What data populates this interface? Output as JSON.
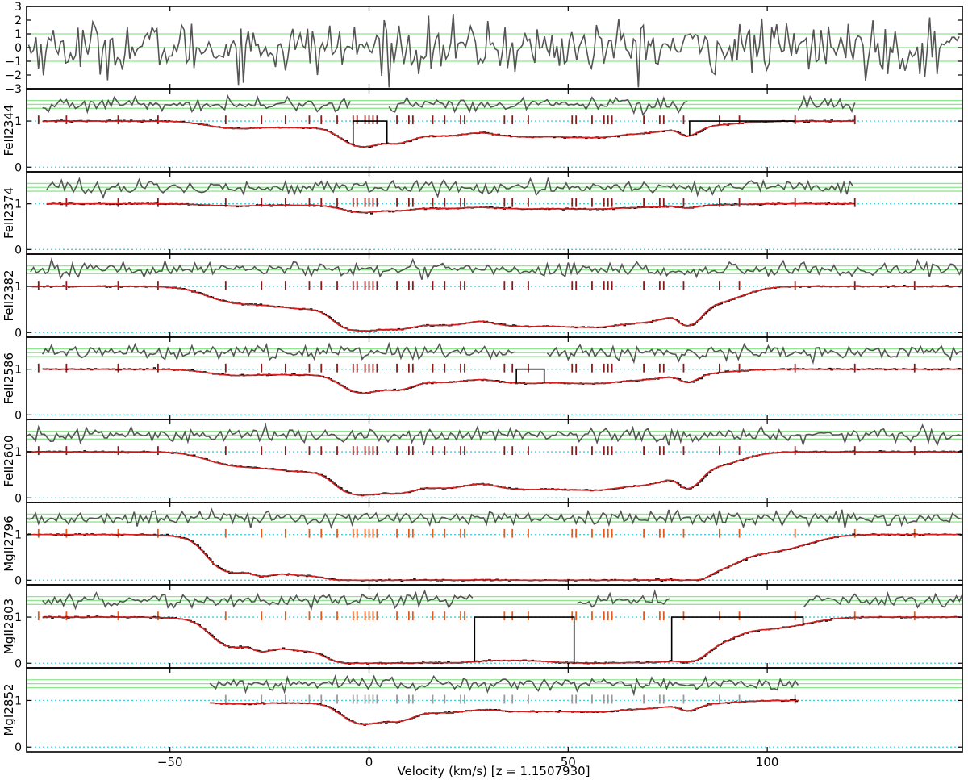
{
  "chart_data": {
    "type": "line",
    "xlabel": "Velocity (km/s) [z = 1.1507930]",
    "xlim": [
      -86,
      149
    ],
    "xticks": [
      -50,
      0,
      50,
      100
    ],
    "xtick_labels": [
      "−50",
      "0",
      "50",
      "100"
    ],
    "residual_panel": {
      "ylim": [
        -3,
        3
      ],
      "yticks": [
        3,
        2,
        1,
        0,
        -1,
        -2,
        -3
      ],
      "ytick_labels": [
        "3",
        "2",
        "1",
        "0",
        "−1",
        "−2",
        "−3"
      ],
      "reference_lines": [
        1,
        0,
        -1
      ]
    },
    "component_velocities": [
      -83,
      -76,
      -63,
      -53,
      -36,
      -27,
      -21,
      -15,
      -12,
      -8,
      -4,
      -3,
      -1,
      0,
      1,
      2,
      7,
      10,
      11,
      16,
      19,
      23,
      24,
      34,
      36,
      40,
      51,
      52,
      56,
      59,
      60,
      61,
      69,
      73,
      74,
      79,
      88,
      93,
      107,
      122,
      137
    ],
    "transitions": [
      {
        "label": "FeII2344",
        "ylim": [
          -0.1,
          1.7
        ],
        "yticks": [
          0,
          1
        ],
        "vrange": [
          -82,
          122
        ],
        "tick_color": "#8b1a1a",
        "mask_regions": [
          [
            -4,
            4.5
          ],
          [
            80.5,
            107
          ]
        ],
        "residual_gaps": [
          [
            -4,
            4.5
          ],
          [
            80.5,
            107
          ]
        ],
        "continuum_feature": [
          -35,
          0.12,
          6
        ],
        "absorption": [
          [
            -20,
            20,
            0.12,
            0.4
          ],
          [
            -12,
            18,
            0.04,
            0.4
          ],
          [
            -4,
            7,
            0.3,
            0.1
          ],
          [
            0,
            8,
            0.5,
            0.18
          ],
          [
            8,
            6,
            0.4,
            0.12
          ],
          [
            16,
            8,
            0.25,
            0.15
          ],
          [
            24,
            10,
            0.25,
            0.15
          ],
          [
            35,
            8,
            0.25,
            0.4
          ],
          [
            43,
            10,
            0.25,
            0.4
          ],
          [
            52,
            10,
            0.22,
            0.3
          ],
          [
            60,
            10,
            0.25,
            0.35
          ],
          [
            72,
            11,
            0.2,
            0.35
          ],
          [
            80,
            3.5,
            0.25,
            0.4
          ],
          [
            88,
            8,
            0.06,
            0.4
          ]
        ]
      },
      {
        "label": "FeII2374",
        "ylim": [
          -0.1,
          1.7
        ],
        "yticks": [
          0,
          1
        ],
        "vrange": [
          -81,
          122
        ],
        "tick_color": "#8b1a1a",
        "mask_regions": [],
        "residual_gaps": [],
        "continuum_feature": [
          -35,
          0.04,
          6
        ],
        "absorption": [
          [
            -20,
            20,
            0.02,
            0.4
          ],
          [
            -12,
            18,
            0.015,
            0.4
          ],
          [
            -4,
            7,
            0.08,
            0.1
          ],
          [
            0,
            8,
            0.13,
            0.18
          ],
          [
            8,
            6,
            0.1,
            0.12
          ],
          [
            16,
            8,
            0.07,
            0.15
          ],
          [
            24,
            10,
            0.07,
            0.15
          ],
          [
            35,
            8,
            0.07,
            0.4
          ],
          [
            43,
            10,
            0.07,
            0.4
          ],
          [
            52,
            10,
            0.06,
            0.3
          ],
          [
            60,
            10,
            0.07,
            0.35
          ],
          [
            72,
            11,
            0.05,
            0.35
          ],
          [
            80,
            3.5,
            0.06,
            0.4
          ],
          [
            88,
            8,
            0.015,
            0.4
          ]
        ]
      },
      {
        "label": "FeII2382",
        "ylim": [
          -0.1,
          1.7
        ],
        "yticks": [
          0,
          1
        ],
        "vrange": [
          -85,
          149
        ],
        "tick_color": "#8b1a1a",
        "mask_regions": [],
        "residual_gaps": [],
        "continuum_feature": [
          -35,
          0.25,
          6
        ],
        "absorption": [
          [
            -20,
            20,
            0.4,
            0.4
          ],
          [
            -12,
            18,
            0.3,
            0.4
          ],
          [
            -4,
            7,
            1.2,
            0.1
          ],
          [
            0,
            8,
            2.0,
            0.18
          ],
          [
            8,
            6,
            1.6,
            0.12
          ],
          [
            16,
            8,
            1.2,
            0.15
          ],
          [
            24,
            10,
            1.2,
            0.15
          ],
          [
            35,
            8,
            1.2,
            0.4
          ],
          [
            43,
            10,
            1.2,
            0.4
          ],
          [
            52,
            10,
            1.1,
            0.3
          ],
          [
            60,
            10,
            1.2,
            0.35
          ],
          [
            72,
            11,
            1.0,
            0.35
          ],
          [
            80,
            3.5,
            1.2,
            0.4
          ],
          [
            88,
            8,
            0.3,
            0.4
          ]
        ]
      },
      {
        "label": "FeII2586",
        "ylim": [
          -0.1,
          1.7
        ],
        "yticks": [
          0,
          1
        ],
        "vrange": [
          -82,
          149
        ],
        "tick_color": "#8b1a1a",
        "mask_regions": [
          [
            37,
            44
          ]
        ],
        "residual_gaps": [
          [
            37,
            44
          ]
        ],
        "continuum_feature": [
          -35,
          0.1,
          6
        ],
        "absorption": [
          [
            -20,
            20,
            0.1,
            0.4
          ],
          [
            -12,
            18,
            0.04,
            0.4
          ],
          [
            -4,
            7,
            0.28,
            0.1
          ],
          [
            0,
            8,
            0.45,
            0.18
          ],
          [
            8,
            6,
            0.38,
            0.12
          ],
          [
            16,
            8,
            0.22,
            0.15
          ],
          [
            24,
            10,
            0.22,
            0.15
          ],
          [
            35,
            8,
            0.22,
            0.4
          ],
          [
            43,
            10,
            0.22,
            0.4
          ],
          [
            52,
            10,
            0.18,
            0.3
          ],
          [
            60,
            10,
            0.22,
            0.35
          ],
          [
            72,
            11,
            0.17,
            0.35
          ],
          [
            80,
            3.5,
            0.22,
            0.4
          ],
          [
            88,
            8,
            0.05,
            0.4
          ]
        ]
      },
      {
        "label": "FeII2600",
        "ylim": [
          -0.1,
          1.7
        ],
        "yticks": [
          0,
          1
        ],
        "vrange": [
          -86,
          149
        ],
        "tick_color": "#8b1a1a",
        "mask_regions": [],
        "residual_gaps": [],
        "continuum_feature": [
          -35,
          0.2,
          6
        ],
        "absorption": [
          [
            -20,
            20,
            0.35,
            0.4
          ],
          [
            -12,
            18,
            0.25,
            0.4
          ],
          [
            -4,
            7,
            1.0,
            0.1
          ],
          [
            0,
            8,
            1.7,
            0.18
          ],
          [
            8,
            6,
            1.4,
            0.12
          ],
          [
            16,
            8,
            1.0,
            0.15
          ],
          [
            24,
            10,
            1.0,
            0.15
          ],
          [
            35,
            8,
            1.0,
            0.4
          ],
          [
            43,
            10,
            1.0,
            0.4
          ],
          [
            52,
            10,
            0.9,
            0.3
          ],
          [
            60,
            10,
            1.0,
            0.35
          ],
          [
            72,
            11,
            0.85,
            0.35
          ],
          [
            80,
            3.5,
            1.0,
            0.4
          ],
          [
            88,
            8,
            0.25,
            0.4
          ]
        ]
      },
      {
        "label": "MgII2796",
        "ylim": [
          -0.1,
          1.7
        ],
        "yticks": [
          0,
          1
        ],
        "vrange": [
          -86,
          149
        ],
        "tick_color": "#e85a1a",
        "mask_regions": [],
        "residual_gaps": [],
        "continuum_feature": [
          -35,
          1.2,
          4
        ],
        "absorption": [
          [
            -27,
            4,
            0.9,
            0.1
          ],
          [
            -20,
            20,
            1.2,
            0.4
          ],
          [
            -12,
            18,
            1.2,
            0.4
          ],
          [
            -4,
            7,
            4,
            0.1
          ],
          [
            0,
            8,
            5,
            0.18
          ],
          [
            8,
            6,
            5,
            0.12
          ],
          [
            16,
            8,
            4,
            0.15
          ],
          [
            24,
            10,
            4,
            0.15
          ],
          [
            35,
            8,
            4,
            0.4
          ],
          [
            43,
            10,
            4,
            0.4
          ],
          [
            52,
            10,
            4,
            0.3
          ],
          [
            60,
            10,
            4,
            0.35
          ],
          [
            72,
            11,
            4,
            0.35
          ],
          [
            80,
            3.5,
            4,
            0.4
          ],
          [
            88,
            8,
            0.9,
            0.4
          ],
          [
            102,
            10,
            0.4,
            0.4
          ]
        ]
      },
      {
        "label": "MgII2803",
        "ylim": [
          -0.1,
          1.7
        ],
        "yticks": [
          0,
          1
        ],
        "vrange": [
          -82,
          149
        ],
        "tick_color": "#e85a1a",
        "mask_regions": [
          [
            26.5,
            51.5
          ],
          [
            76,
            109
          ]
        ],
        "residual_gaps": [
          [
            26.5,
            51.5
          ],
          [
            76,
            109
          ]
        ],
        "continuum_feature": [
          -35,
          0.7,
          4
        ],
        "absorption": [
          [
            -27,
            4,
            0.5,
            0.1
          ],
          [
            -20,
            20,
            0.7,
            0.4
          ],
          [
            -12,
            18,
            0.7,
            0.4
          ],
          [
            -4,
            7,
            3,
            0.1
          ],
          [
            0,
            8,
            3.5,
            0.18
          ],
          [
            8,
            6,
            3.5,
            0.12
          ],
          [
            16,
            8,
            3,
            0.15
          ],
          [
            24,
            10,
            3,
            0.15
          ],
          [
            35,
            8,
            1.6,
            0.4
          ],
          [
            43,
            10,
            1.6,
            0.4
          ],
          [
            52,
            10,
            3,
            0.3
          ],
          [
            60,
            10,
            3,
            0.35
          ],
          [
            72,
            11,
            3,
            0.35
          ],
          [
            80,
            3.5,
            1.6,
            0.4
          ],
          [
            88,
            8,
            0.45,
            0.4
          ],
          [
            102,
            10,
            0.25,
            0.4
          ]
        ]
      },
      {
        "label": "MgI2852",
        "ylim": [
          -0.1,
          1.7
        ],
        "yticks": [
          0,
          1
        ],
        "vrange": [
          -40,
          108
        ],
        "tick_color": "#999999",
        "mask_regions": [],
        "residual_gaps": [],
        "continuum_feature": [
          -35,
          0.06,
          6
        ],
        "absorption": [
          [
            -20,
            20,
            0.04,
            0.4
          ],
          [
            -12,
            18,
            0.02,
            0.4
          ],
          [
            -4,
            7,
            0.25,
            0.1
          ],
          [
            0,
            8,
            0.5,
            0.18
          ],
          [
            8,
            6,
            0.38,
            0.12
          ],
          [
            16,
            8,
            0.2,
            0.15
          ],
          [
            24,
            10,
            0.2,
            0.15
          ],
          [
            35,
            8,
            0.16,
            0.4
          ],
          [
            43,
            10,
            0.16,
            0.4
          ],
          [
            52,
            10,
            0.14,
            0.3
          ],
          [
            60,
            10,
            0.16,
            0.35
          ],
          [
            72,
            11,
            0.13,
            0.35
          ],
          [
            80,
            3.5,
            0.16,
            0.4
          ],
          [
            88,
            8,
            0.04,
            0.4
          ]
        ]
      }
    ],
    "colors": {
      "residual": "#555555",
      "model": "#d61f1f",
      "data": "#000000",
      "residual_bands": "#8ee88e",
      "reference": "#3fd0e0"
    }
  }
}
